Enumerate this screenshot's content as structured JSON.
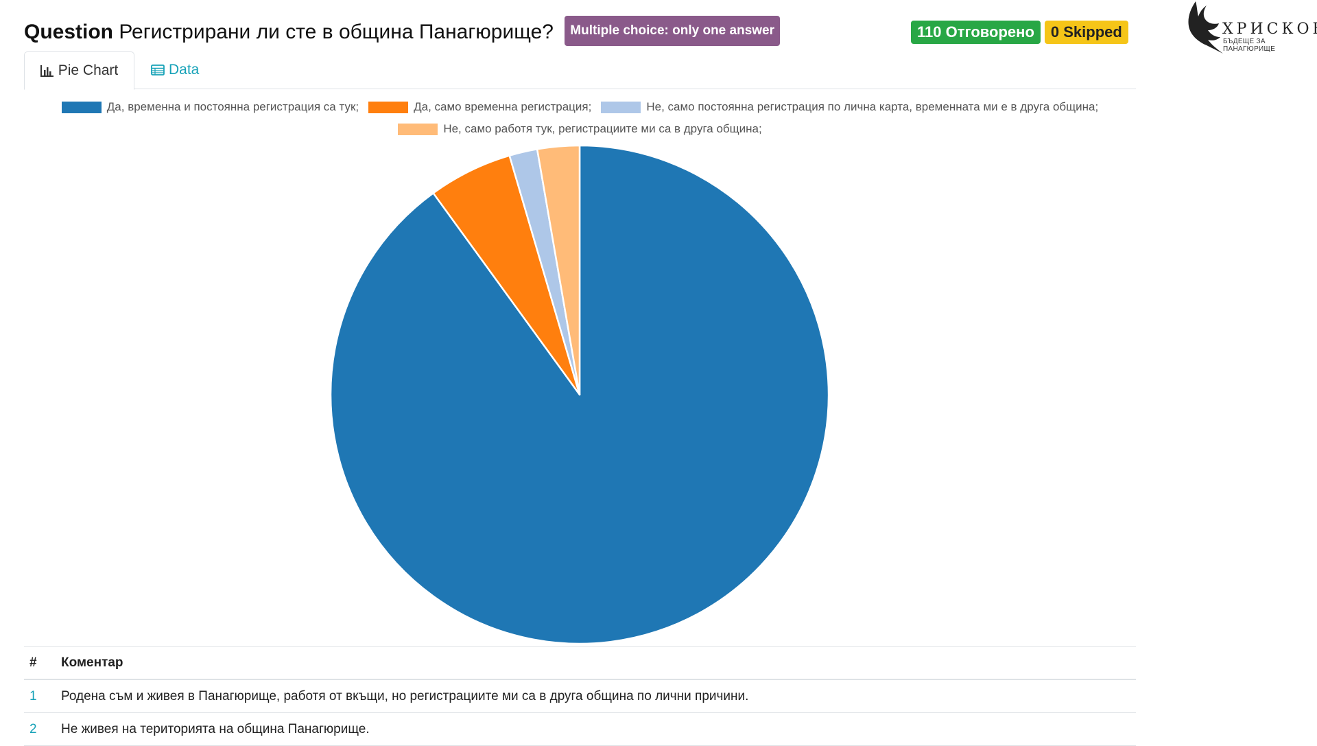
{
  "header": {
    "question_word": "Question",
    "question_text": "Регистрирани ли сте в община Панагюрище?",
    "question_type": "Multiple choice: only one answer",
    "answered": "110 Отговорено",
    "skipped": "0 Skipped"
  },
  "logo": {
    "name": "ХРИСКОВ",
    "tagline": "БЪДЕЩЕ ЗА ПАНАГЮРИЩЕ"
  },
  "tabs": [
    {
      "label": "Pie Chart",
      "icon": "bar-chart-icon"
    },
    {
      "label": "Data",
      "icon": "table-icon"
    }
  ],
  "colors": {
    "green": "#28a745",
    "yellow": "#f5c518",
    "purple": "#8a5a8a",
    "teal": "#17a2b8"
  },
  "chart_data": {
    "type": "pie",
    "categories": [
      "Да, временна и постоянна регистрация са тук;",
      "Да, само временна регистрация;",
      "Не, само постоянна регистрация по лична карта, временната ми е в друга община;",
      "Не, само работя тук, регистрациите ми са в друга община;"
    ],
    "values": [
      99,
      6,
      2,
      3
    ],
    "colors": [
      "#1f77b4",
      "#ff7f0e",
      "#aec7e8",
      "#ffbb78"
    ],
    "legend_position": "top"
  },
  "table": {
    "headers": [
      "#",
      "Коментар"
    ],
    "rows": [
      {
        "num": "1",
        "comment": "Родена съм и живея в Панагюрище, работя от вкъщи, но регистрациите ми са в друга община по лични причини."
      },
      {
        "num": "2",
        "comment": "Не живея на територията на община Панагюрище."
      }
    ]
  }
}
